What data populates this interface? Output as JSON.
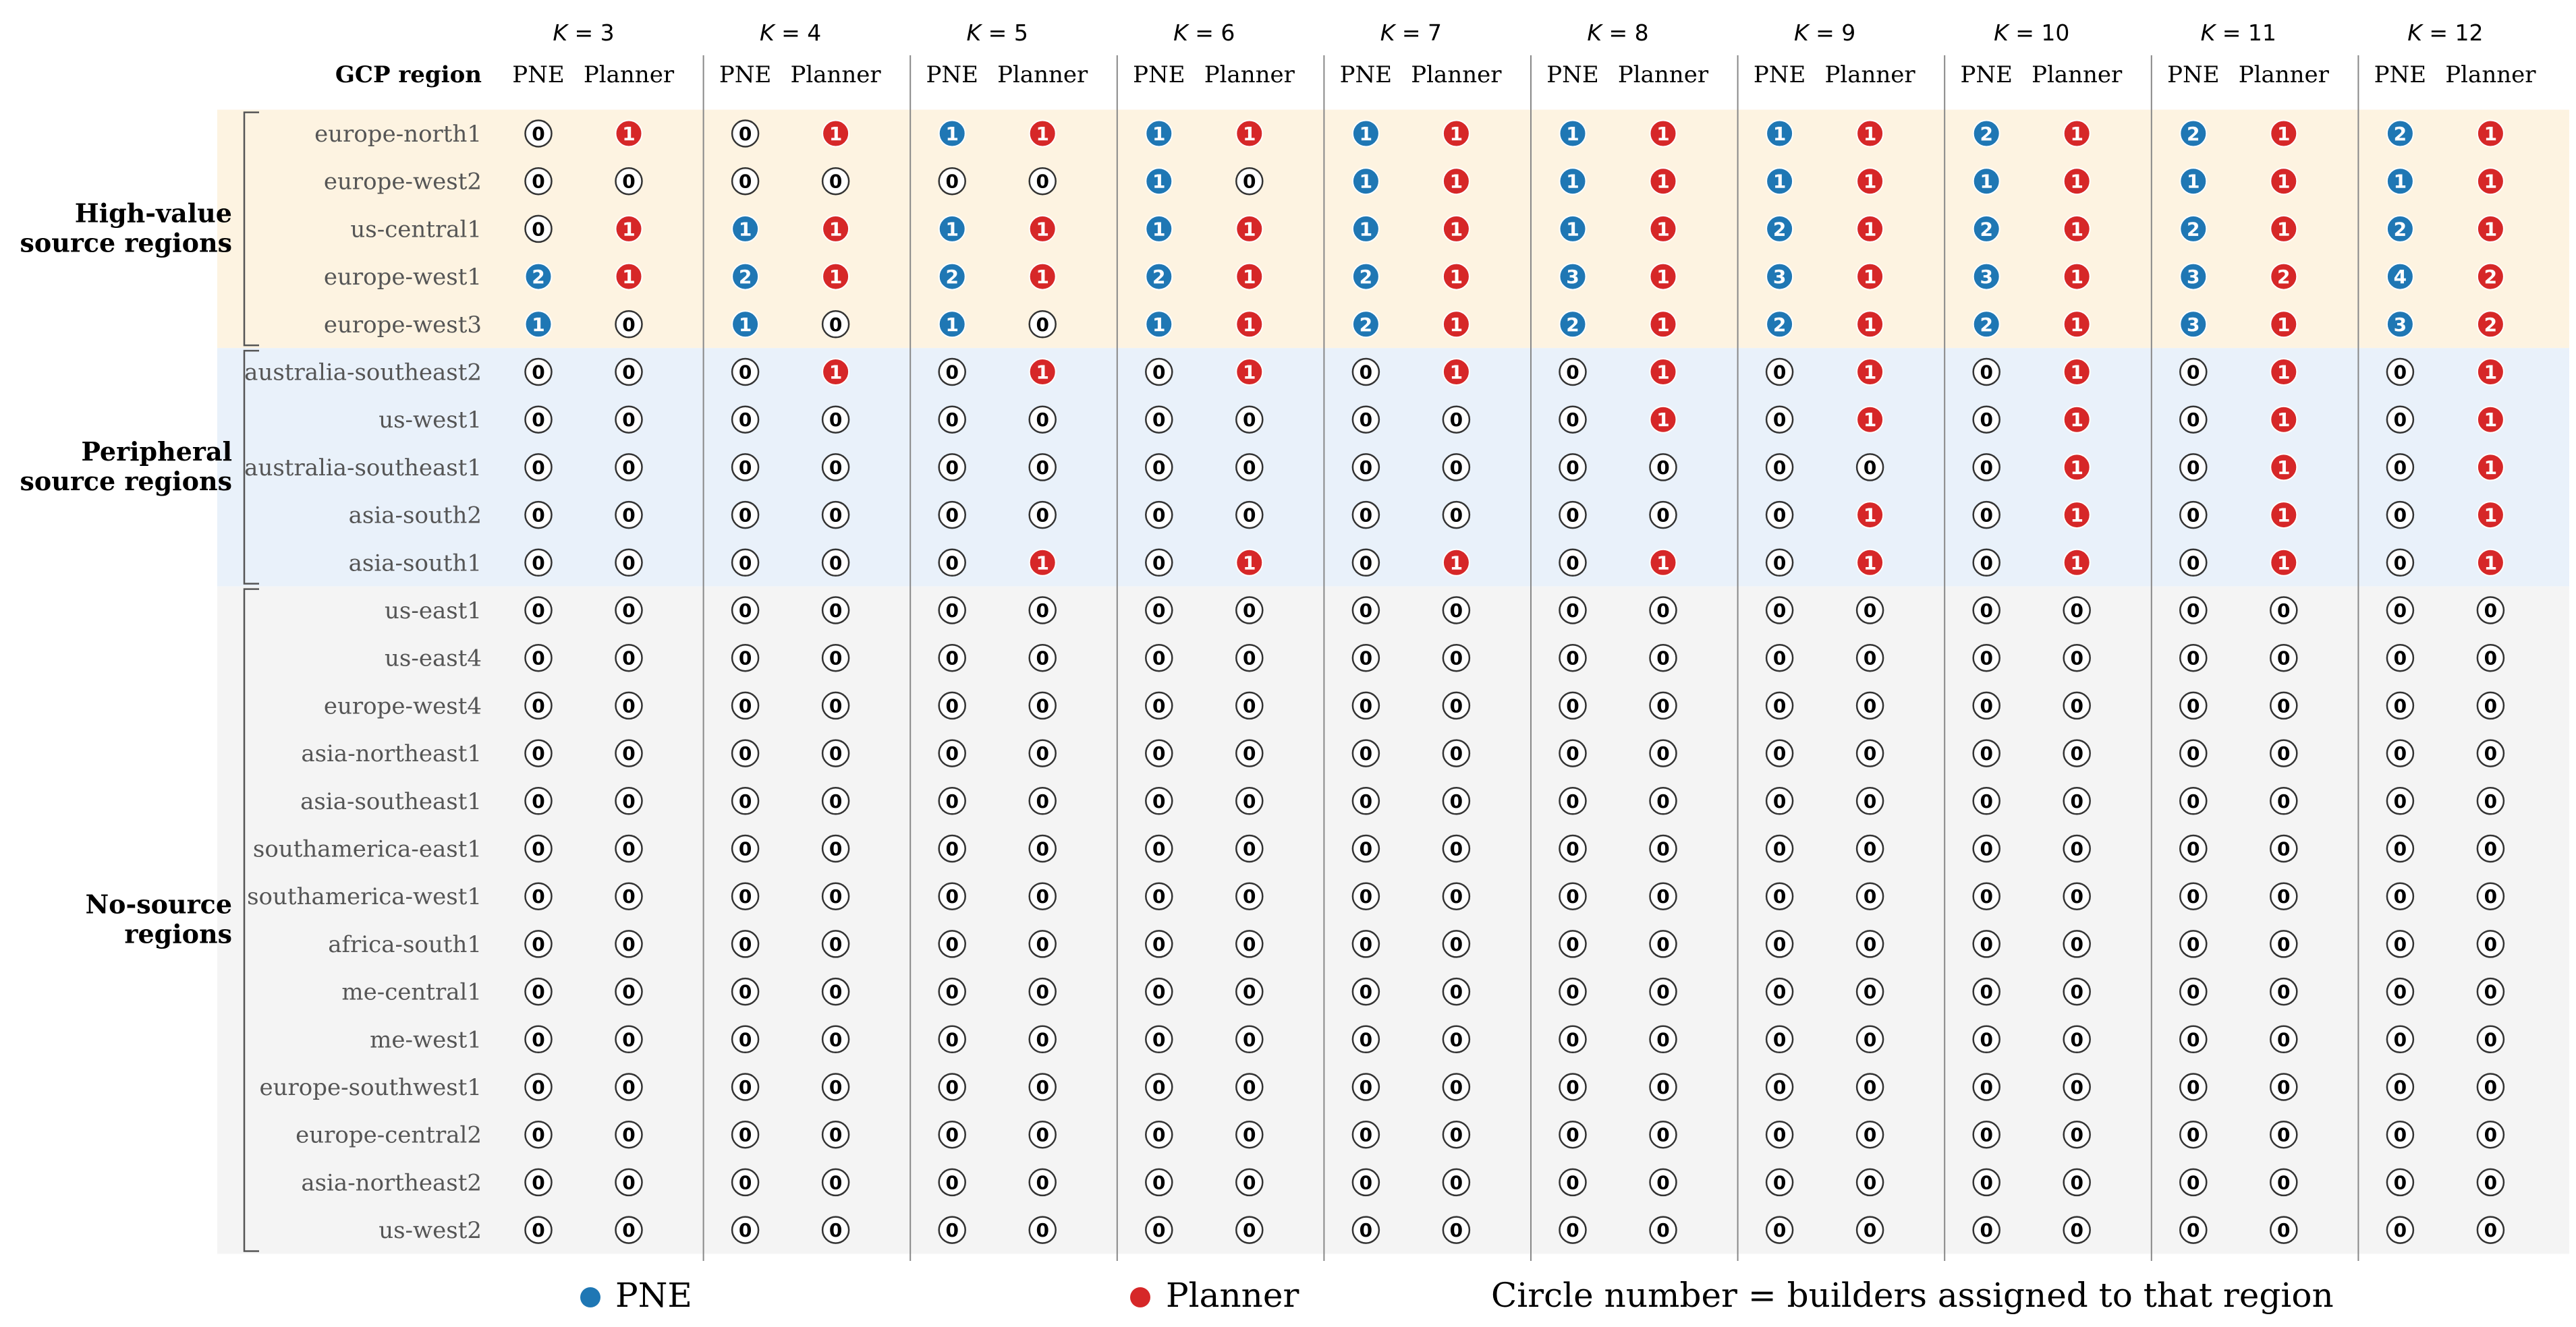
{
  "chart_data": {
    "type": "table",
    "header_label": "GCP region",
    "k_values": [
      3,
      4,
      5,
      6,
      7,
      8,
      9,
      10,
      11,
      12
    ],
    "methods": [
      "PNE",
      "Planner"
    ],
    "groups": [
      {
        "label_lines": [
          "High-value",
          "source regions"
        ],
        "bg": "#fdf3e1",
        "regions": [
          "europe-north1",
          "europe-west2",
          "us-central1",
          "europe-west1",
          "europe-west3"
        ]
      },
      {
        "label_lines": [
          "Peripheral",
          "source regions"
        ],
        "bg": "#e9f1fa",
        "regions": [
          "australia-southeast2",
          "us-west1",
          "australia-southeast1",
          "asia-south2",
          "asia-south1"
        ]
      },
      {
        "label_lines": [
          "No-source",
          "regions"
        ],
        "bg": "#f4f4f4",
        "regions": [
          "us-east1",
          "us-east4",
          "europe-west4",
          "asia-northeast1",
          "asia-southeast1",
          "southamerica-east1",
          "southamerica-west1",
          "africa-south1",
          "me-central1",
          "me-west1",
          "europe-southwest1",
          "europe-central2",
          "asia-northeast2",
          "us-west2"
        ]
      }
    ],
    "pne": [
      [
        0,
        0,
        1,
        1,
        1,
        1,
        1,
        2,
        2,
        2
      ],
      [
        0,
        0,
        0,
        1,
        1,
        1,
        1,
        1,
        1,
        1
      ],
      [
        0,
        1,
        1,
        1,
        1,
        1,
        2,
        2,
        2,
        2
      ],
      [
        2,
        2,
        2,
        2,
        2,
        3,
        3,
        3,
        3,
        4
      ],
      [
        1,
        1,
        1,
        1,
        2,
        2,
        2,
        2,
        3,
        3
      ],
      [
        0,
        0,
        0,
        0,
        0,
        0,
        0,
        0,
        0,
        0
      ],
      [
        0,
        0,
        0,
        0,
        0,
        0,
        0,
        0,
        0,
        0
      ],
      [
        0,
        0,
        0,
        0,
        0,
        0,
        0,
        0,
        0,
        0
      ],
      [
        0,
        0,
        0,
        0,
        0,
        0,
        0,
        0,
        0,
        0
      ],
      [
        0,
        0,
        0,
        0,
        0,
        0,
        0,
        0,
        0,
        0
      ],
      [
        0,
        0,
        0,
        0,
        0,
        0,
        0,
        0,
        0,
        0
      ],
      [
        0,
        0,
        0,
        0,
        0,
        0,
        0,
        0,
        0,
        0
      ],
      [
        0,
        0,
        0,
        0,
        0,
        0,
        0,
        0,
        0,
        0
      ],
      [
        0,
        0,
        0,
        0,
        0,
        0,
        0,
        0,
        0,
        0
      ],
      [
        0,
        0,
        0,
        0,
        0,
        0,
        0,
        0,
        0,
        0
      ],
      [
        0,
        0,
        0,
        0,
        0,
        0,
        0,
        0,
        0,
        0
      ],
      [
        0,
        0,
        0,
        0,
        0,
        0,
        0,
        0,
        0,
        0
      ],
      [
        0,
        0,
        0,
        0,
        0,
        0,
        0,
        0,
        0,
        0
      ],
      [
        0,
        0,
        0,
        0,
        0,
        0,
        0,
        0,
        0,
        0
      ],
      [
        0,
        0,
        0,
        0,
        0,
        0,
        0,
        0,
        0,
        0
      ],
      [
        0,
        0,
        0,
        0,
        0,
        0,
        0,
        0,
        0,
        0
      ],
      [
        0,
        0,
        0,
        0,
        0,
        0,
        0,
        0,
        0,
        0
      ],
      [
        0,
        0,
        0,
        0,
        0,
        0,
        0,
        0,
        0,
        0
      ],
      [
        0,
        0,
        0,
        0,
        0,
        0,
        0,
        0,
        0,
        0
      ]
    ],
    "planner": [
      [
        1,
        1,
        1,
        1,
        1,
        1,
        1,
        1,
        1,
        1
      ],
      [
        0,
        0,
        0,
        0,
        1,
        1,
        1,
        1,
        1,
        1
      ],
      [
        1,
        1,
        1,
        1,
        1,
        1,
        1,
        1,
        1,
        1
      ],
      [
        1,
        1,
        1,
        1,
        1,
        1,
        1,
        1,
        2,
        2
      ],
      [
        0,
        0,
        0,
        1,
        1,
        1,
        1,
        1,
        1,
        2
      ],
      [
        0,
        1,
        1,
        1,
        1,
        1,
        1,
        1,
        1,
        1
      ],
      [
        0,
        0,
        0,
        0,
        0,
        1,
        1,
        1,
        1,
        1
      ],
      [
        0,
        0,
        0,
        0,
        0,
        0,
        0,
        1,
        1,
        1
      ],
      [
        0,
        0,
        0,
        0,
        0,
        0,
        1,
        1,
        1,
        1
      ],
      [
        0,
        0,
        1,
        1,
        1,
        1,
        1,
        1,
        1,
        1
      ],
      [
        0,
        0,
        0,
        0,
        0,
        0,
        0,
        0,
        0,
        0
      ],
      [
        0,
        0,
        0,
        0,
        0,
        0,
        0,
        0,
        0,
        0
      ],
      [
        0,
        0,
        0,
        0,
        0,
        0,
        0,
        0,
        0,
        0
      ],
      [
        0,
        0,
        0,
        0,
        0,
        0,
        0,
        0,
        0,
        0
      ],
      [
        0,
        0,
        0,
        0,
        0,
        0,
        0,
        0,
        0,
        0
      ],
      [
        0,
        0,
        0,
        0,
        0,
        0,
        0,
        0,
        0,
        0
      ],
      [
        0,
        0,
        0,
        0,
        0,
        0,
        0,
        0,
        0,
        0
      ],
      [
        0,
        0,
        0,
        0,
        0,
        0,
        0,
        0,
        0,
        0
      ],
      [
        0,
        0,
        0,
        0,
        0,
        0,
        0,
        0,
        0,
        0
      ],
      [
        0,
        0,
        0,
        0,
        0,
        0,
        0,
        0,
        0,
        0
      ],
      [
        0,
        0,
        0,
        0,
        0,
        0,
        0,
        0,
        0,
        0
      ],
      [
        0,
        0,
        0,
        0,
        0,
        0,
        0,
        0,
        0,
        0
      ],
      [
        0,
        0,
        0,
        0,
        0,
        0,
        0,
        0,
        0,
        0
      ],
      [
        0,
        0,
        0,
        0,
        0,
        0,
        0,
        0,
        0,
        0
      ]
    ],
    "legend": {
      "items": [
        {
          "label": "PNE",
          "color": "#1f77b4"
        },
        {
          "label": "Planner",
          "color": "#d62728"
        }
      ],
      "note": "Circle number = builders assigned to that region",
      "placement": "bottom"
    },
    "colors": {
      "pne": "#1f77b4",
      "planner": "#d62728",
      "zero_fill": "#ffffff",
      "zero_stroke": "#333333"
    }
  }
}
